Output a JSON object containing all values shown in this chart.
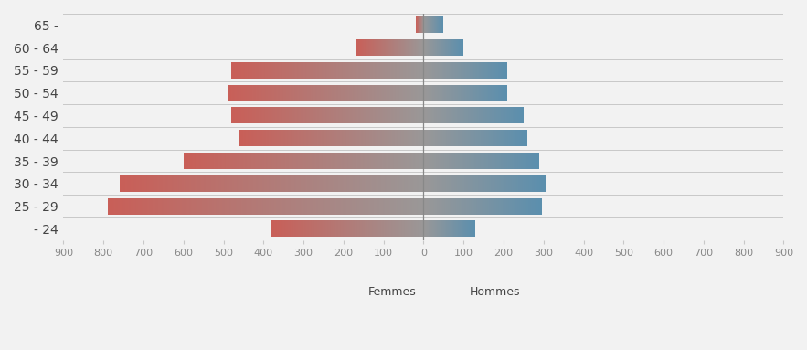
{
  "age_groups": [
    "65 -",
    "60 - 64",
    "55 - 59",
    "50 - 54",
    "45 - 49",
    "40 - 44",
    "35 - 39",
    "30 - 34",
    "25 - 29",
    "- 24"
  ],
  "femmes": [
    20,
    170,
    480,
    490,
    480,
    460,
    600,
    760,
    790,
    380
  ],
  "hommes": [
    50,
    100,
    210,
    210,
    250,
    260,
    290,
    305,
    295,
    130
  ],
  "xlim": [
    -900,
    900
  ],
  "xticks": [
    -900,
    -800,
    -700,
    -600,
    -500,
    -400,
    -300,
    -200,
    -100,
    0,
    100,
    200,
    300,
    400,
    500,
    600,
    700,
    800,
    900
  ],
  "xtick_labels": [
    "900",
    "800",
    "700",
    "600",
    "500",
    "400",
    "300",
    "200",
    "100",
    "0",
    "100",
    "200",
    "300",
    "400",
    "500",
    "600",
    "700",
    "800",
    "900"
  ],
  "femmes_color_outer": "#c95f58",
  "femmes_color_inner": "#b8a0a0",
  "center_color": "#9a9898",
  "hommes_color_inner": "#9a9898",
  "hommes_color_outer": "#5b8fae",
  "background_color": "#f2f2f2",
  "bar_height": 0.72,
  "legend_femmes": "Femmes",
  "legend_hommes": "Hommes",
  "grid_color": "#c8c8c8",
  "tick_color": "#888888",
  "label_color": "#444444",
  "fontsize_labels": 10,
  "fontsize_ticks": 8,
  "center_line_color": "#888888"
}
